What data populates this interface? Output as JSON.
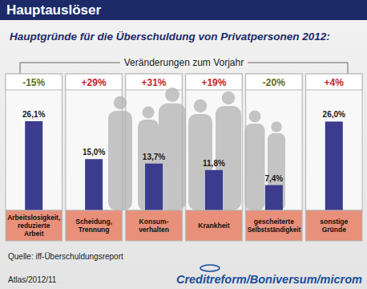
{
  "chart_data": {
    "type": "bar",
    "title": "Hauptauslöser",
    "subtitle": "Hauptgründe für die Überschuldung von Privatpersonen 2012:",
    "annotation": "Veränderungen zum Vorjahr",
    "categories": [
      "Arbeitslosigkeit,\nreduzierte\nArbeit",
      "Scheidung,\nTrennung",
      "Konsum-\nverhalten",
      "Krankheit",
      "gescheiterte\nSelbstständigkeit",
      "sonstige\nGründe"
    ],
    "values": [
      26.1,
      15.0,
      13.7,
      11.8,
      7.4,
      26.0
    ],
    "value_labels": [
      "26,1%",
      "15,0%",
      "13,7%",
      "11,8%",
      "7,4%",
      "26,0%"
    ],
    "changes": [
      -15,
      29,
      31,
      19,
      -20,
      4
    ],
    "change_labels": [
      "-15%",
      "+29%",
      "+31%",
      "+19%",
      "-20%",
      "+4%"
    ],
    "color": "#3b3c8e",
    "data_labels": true,
    "tick_labels": false,
    "source": "Quelle: iff-Überschuldungsreport",
    "footer": "Atlas/2012/11",
    "credit": "Creditreform/Boniversum/microm"
  }
}
